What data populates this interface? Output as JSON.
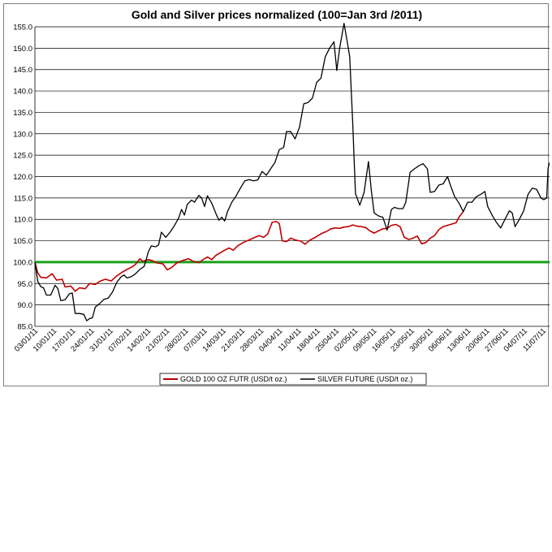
{
  "chart_data": {
    "type": "line",
    "title": "Gold and Silver prices normalized (100=Jan 3rd /2011)",
    "xlabel": "",
    "ylabel": "",
    "ylim": [
      85,
      155
    ],
    "yticks": [
      "85.0",
      "90.0",
      "95.0",
      "100.0",
      "105.0",
      "110.0",
      "115.0",
      "120.0",
      "125.0",
      "130.0",
      "135.0",
      "140.0",
      "145.0",
      "150.0",
      "155.0"
    ],
    "xticks": [
      "03/01/11",
      "10/01/11",
      "17/01/11",
      "24/01/11",
      "31/01/11",
      "07/02/11",
      "14/02/11",
      "21/02/11",
      "28/02/11",
      "07/03/11",
      "14/03/11",
      "21/03/11",
      "28/03/11",
      "04/04/11",
      "11/04/11",
      "18/04/11",
      "25/04/11",
      "02/05/11",
      "09/05/11",
      "16/05/11",
      "23/05/11",
      "30/05/11",
      "06/06/11",
      "13/06/11",
      "20/06/11",
      "27/06/11",
      "04/07/11",
      "11/07/11"
    ],
    "grid": "horizontal",
    "legend_position": "bottom",
    "reference_line": {
      "y": 100,
      "color": "#1aa01a"
    },
    "series": [
      {
        "name": "GOLD 100 OZ FUTR (USD/t oz.)",
        "color": "#c00000",
        "points": [
          [
            0,
            100
          ],
          [
            0.4,
            97.5
          ],
          [
            0.8,
            96.5
          ],
          [
            1.6,
            96.3
          ],
          [
            2.4,
            97.3
          ],
          [
            3,
            95.8
          ],
          [
            3.8,
            96.0
          ],
          [
            4.2,
            94.2
          ],
          [
            5,
            94.4
          ],
          [
            5.6,
            93.2
          ],
          [
            6.2,
            94.0
          ],
          [
            7,
            93.8
          ],
          [
            7.6,
            95.0
          ],
          [
            8.4,
            94.8
          ],
          [
            9,
            95.5
          ],
          [
            9.8,
            96.0
          ],
          [
            10.6,
            95.6
          ],
          [
            11.4,
            96.8
          ],
          [
            12,
            97.5
          ],
          [
            12.8,
            98.3
          ],
          [
            13.4,
            98.8
          ],
          [
            14,
            99.5
          ],
          [
            14.6,
            100.8
          ],
          [
            15,
            100.2
          ],
          [
            15.8,
            100.6
          ],
          [
            16.4,
            100.3
          ],
          [
            17,
            99.8
          ],
          [
            17.8,
            99.6
          ],
          [
            18.4,
            98.2
          ],
          [
            19,
            98.7
          ],
          [
            19.8,
            99.9
          ],
          [
            20.6,
            100.4
          ],
          [
            21.4,
            100.8
          ],
          [
            22,
            100.2
          ],
          [
            22.8,
            99.9
          ],
          [
            23.4,
            100.6
          ],
          [
            24,
            101.2
          ],
          [
            24.6,
            100.6
          ],
          [
            25.2,
            101.6
          ],
          [
            25.8,
            102.2
          ],
          [
            26.4,
            102.8
          ],
          [
            27,
            103.3
          ],
          [
            27.6,
            102.8
          ],
          [
            28.2,
            103.8
          ],
          [
            29,
            104.6
          ],
          [
            29.8,
            105.2
          ],
          [
            30.6,
            105.8
          ],
          [
            31.2,
            106.2
          ],
          [
            31.8,
            105.8
          ],
          [
            32.4,
            106.6
          ],
          [
            33,
            109.3
          ],
          [
            33.6,
            109.5
          ],
          [
            34,
            109.0
          ],
          [
            34.4,
            105.0
          ],
          [
            35,
            104.8
          ],
          [
            35.6,
            105.6
          ],
          [
            36.2,
            105.2
          ],
          [
            37,
            104.9
          ],
          [
            37.6,
            104.2
          ],
          [
            38.2,
            105.1
          ],
          [
            38.8,
            105.6
          ],
          [
            39.4,
            106.2
          ],
          [
            40,
            106.8
          ],
          [
            40.6,
            107.2
          ],
          [
            41.2,
            107.8
          ],
          [
            41.8,
            108.0
          ],
          [
            42.4,
            107.9
          ],
          [
            43,
            108.2
          ],
          [
            43.6,
            108.3
          ],
          [
            44.2,
            108.7
          ],
          [
            44.8,
            108.4
          ],
          [
            45.4,
            108.3
          ],
          [
            46,
            108.1
          ],
          [
            46.6,
            107.3
          ],
          [
            47.2,
            106.8
          ],
          [
            47.8,
            107.3
          ],
          [
            48.4,
            107.8
          ],
          [
            49,
            107.9
          ],
          [
            49.6,
            108.6
          ],
          [
            50.2,
            108.8
          ],
          [
            50.8,
            108.3
          ],
          [
            51.4,
            105.8
          ],
          [
            52,
            105.3
          ],
          [
            52.6,
            105.6
          ],
          [
            53.2,
            106.1
          ],
          [
            53.8,
            104.3
          ],
          [
            54.4,
            104.6
          ],
          [
            55,
            105.6
          ],
          [
            55.6,
            106.2
          ],
          [
            56.2,
            107.6
          ],
          [
            56.8,
            108.3
          ],
          [
            57.4,
            108.6
          ],
          [
            58,
            108.9
          ],
          [
            58.6,
            109.2
          ],
          [
            59,
            110.5
          ],
          [
            59.4,
            111.4
          ],
          [
            59.6,
            111.8
          ]
        ]
      },
      {
        "name": "SILVER FUTURE (USD/t oz.)",
        "color": "#000000",
        "points": [
          [
            0,
            100
          ],
          [
            0.4,
            95.5
          ],
          [
            0.8,
            94.3
          ],
          [
            1.2,
            94.0
          ],
          [
            1.6,
            92.3
          ],
          [
            2.2,
            92.3
          ],
          [
            2.8,
            94.6
          ],
          [
            3.2,
            93.8
          ],
          [
            3.6,
            91.0
          ],
          [
            4.2,
            91.2
          ],
          [
            4.8,
            92.6
          ],
          [
            5.2,
            92.8
          ],
          [
            5.6,
            88.0
          ],
          [
            6.2,
            88.0
          ],
          [
            6.8,
            87.8
          ],
          [
            7.2,
            86.3
          ],
          [
            7.6,
            86.8
          ],
          [
            8,
            87.0
          ],
          [
            8.4,
            89.5
          ],
          [
            9,
            90.3
          ],
          [
            9.6,
            91.3
          ],
          [
            10.2,
            91.6
          ],
          [
            10.8,
            93.0
          ],
          [
            11.4,
            95.3
          ],
          [
            12,
            96.6
          ],
          [
            12.4,
            97.0
          ],
          [
            12.8,
            96.3
          ],
          [
            13.4,
            96.6
          ],
          [
            14,
            97.3
          ],
          [
            14.6,
            98.3
          ],
          [
            15.2,
            99.0
          ],
          [
            15.8,
            102.5
          ],
          [
            16.2,
            103.8
          ],
          [
            16.8,
            103.6
          ],
          [
            17.2,
            104.0
          ],
          [
            17.6,
            107.0
          ],
          [
            18.2,
            105.8
          ],
          [
            18.8,
            107.0
          ],
          [
            19.4,
            108.5
          ],
          [
            20,
            110.3
          ],
          [
            20.4,
            112.3
          ],
          [
            20.8,
            111.0
          ],
          [
            21.2,
            113.5
          ],
          [
            21.8,
            114.5
          ],
          [
            22.2,
            114.0
          ],
          [
            22.8,
            115.6
          ],
          [
            23.2,
            115.0
          ],
          [
            23.6,
            113.0
          ],
          [
            24,
            115.5
          ],
          [
            24.6,
            113.8
          ],
          [
            25.2,
            111.3
          ],
          [
            25.6,
            109.8
          ],
          [
            26,
            110.5
          ],
          [
            26.4,
            109.6
          ],
          [
            26.8,
            111.8
          ],
          [
            27.4,
            114.0
          ],
          [
            28,
            115.5
          ],
          [
            28.6,
            117.3
          ],
          [
            29.2,
            119.0
          ],
          [
            29.8,
            119.3
          ],
          [
            30.4,
            119.0
          ],
          [
            31,
            119.2
          ],
          [
            31.6,
            121.2
          ],
          [
            32.2,
            120.3
          ],
          [
            32.8,
            121.8
          ],
          [
            33.4,
            123.3
          ],
          [
            34,
            126.3
          ],
          [
            34.6,
            126.8
          ],
          [
            35,
            130.5
          ],
          [
            35.6,
            130.5
          ],
          [
            36.2,
            128.8
          ],
          [
            36.8,
            131.5
          ],
          [
            37.4,
            137.0
          ],
          [
            38,
            137.3
          ],
          [
            38.6,
            138.3
          ],
          [
            39.2,
            142.0
          ],
          [
            39.8,
            143.0
          ],
          [
            40.4,
            148.0
          ],
          [
            41,
            150.0
          ],
          [
            41.6,
            151.5
          ],
          [
            42,
            144.8
          ],
          [
            42.4,
            150.0
          ],
          [
            43,
            155.8
          ],
          [
            43.4,
            152.0
          ],
          [
            43.8,
            148.0
          ],
          [
            44.2,
            133.0
          ],
          [
            44.6,
            116.0
          ],
          [
            45.2,
            113.3
          ],
          [
            45.8,
            116.3
          ],
          [
            46.4,
            123.5
          ],
          [
            46.8,
            116.8
          ],
          [
            47.2,
            111.5
          ],
          [
            47.8,
            110.8
          ],
          [
            48.4,
            110.5
          ],
          [
            49,
            107.5
          ],
          [
            49.6,
            112.3
          ],
          [
            50,
            112.8
          ],
          [
            50.6,
            112.5
          ],
          [
            51.2,
            112.5
          ],
          [
            51.6,
            114.0
          ],
          [
            52.2,
            121.0
          ],
          [
            52.8,
            121.8
          ],
          [
            53.4,
            122.5
          ],
          [
            54,
            123.0
          ],
          [
            54.6,
            121.8
          ],
          [
            55,
            116.3
          ],
          [
            55.6,
            116.5
          ],
          [
            56.2,
            118.0
          ],
          [
            56.8,
            118.3
          ],
          [
            57.4,
            120.0
          ],
          [
            57.8,
            118.0
          ],
          [
            58.4,
            115.3
          ],
          [
            59,
            113.8
          ],
          [
            59.6,
            111.8
          ],
          [
            60.2,
            114.0
          ],
          [
            60.8,
            114.0
          ],
          [
            61.4,
            115.3
          ],
          [
            62,
            115.8
          ],
          [
            62.6,
            116.5
          ],
          [
            63,
            113.0
          ],
          [
            63.6,
            111.0
          ],
          [
            64.2,
            109.3
          ],
          [
            64.8,
            108.0
          ],
          [
            65.4,
            110.0
          ],
          [
            66,
            112.0
          ],
          [
            66.4,
            111.5
          ],
          [
            66.8,
            108.3
          ],
          [
            67.4,
            110.0
          ],
          [
            68,
            112.0
          ],
          [
            68.6,
            115.8
          ],
          [
            69.2,
            117.3
          ],
          [
            69.8,
            117.0
          ],
          [
            70.4,
            115.0
          ],
          [
            70.8,
            114.6
          ],
          [
            71.2,
            115.0
          ],
          [
            71.4,
            122.0
          ],
          [
            71.6,
            123.3
          ]
        ]
      }
    ],
    "x_domain": [
      0,
      71.6
    ]
  },
  "colors": {
    "gold": "#c00000",
    "silver": "#000000",
    "baseline": "#1aa01a",
    "grid": "#000000"
  }
}
